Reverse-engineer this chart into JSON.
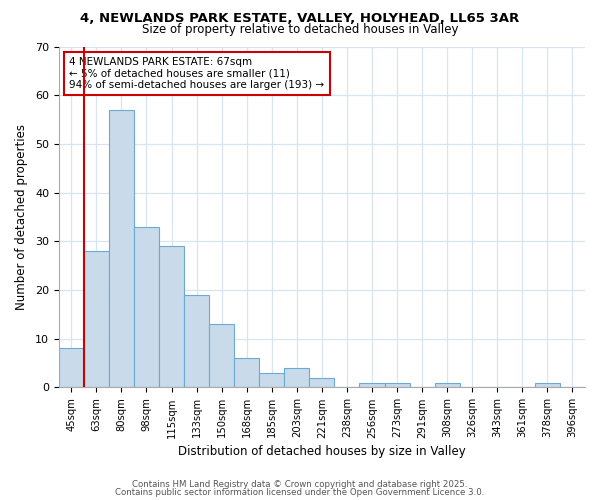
{
  "title1": "4, NEWLANDS PARK ESTATE, VALLEY, HOLYHEAD, LL65 3AR",
  "title2": "Size of property relative to detached houses in Valley",
  "xlabel": "Distribution of detached houses by size in Valley",
  "ylabel": "Number of detached properties",
  "categories": [
    "45sqm",
    "63sqm",
    "80sqm",
    "98sqm",
    "115sqm",
    "133sqm",
    "150sqm",
    "168sqm",
    "185sqm",
    "203sqm",
    "221sqm",
    "238sqm",
    "256sqm",
    "273sqm",
    "291sqm",
    "308sqm",
    "326sqm",
    "343sqm",
    "361sqm",
    "378sqm",
    "396sqm"
  ],
  "values": [
    8,
    28,
    57,
    33,
    29,
    19,
    13,
    6,
    3,
    4,
    2,
    0,
    1,
    1,
    0,
    1,
    0,
    0,
    0,
    1,
    0
  ],
  "bar_color": "#c9daea",
  "bar_edge_color": "#6aaad4",
  "vline_color": "#cc0000",
  "vline_x_index": 1.5,
  "annotation_text": "4 NEWLANDS PARK ESTATE: 67sqm\n← 5% of detached houses are smaller (11)\n94% of semi-detached houses are larger (193) →",
  "ylim": [
    0,
    70
  ],
  "yticks": [
    0,
    10,
    20,
    30,
    40,
    50,
    60,
    70
  ],
  "plot_bg_color": "#ffffff",
  "fig_bg_color": "#ffffff",
  "grid_color": "#d8e4f0",
  "footer_text1": "Contains HM Land Registry data © Crown copyright and database right 2025.",
  "footer_text2": "Contains public sector information licensed under the Open Government Licence 3.0."
}
